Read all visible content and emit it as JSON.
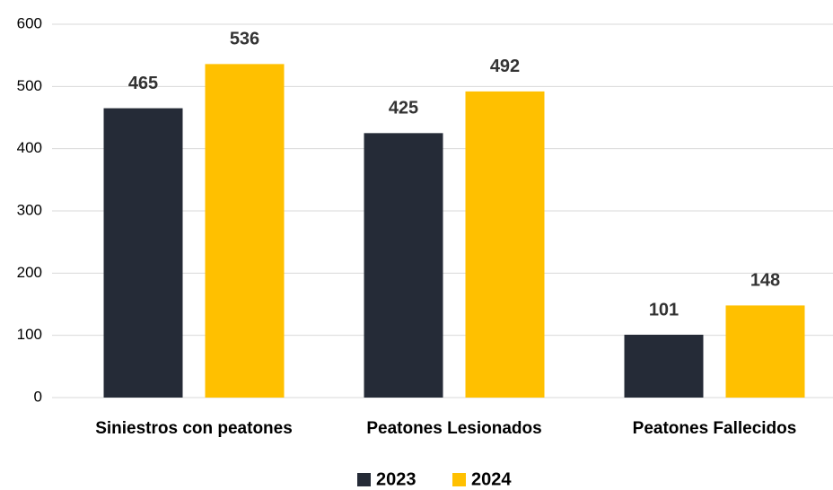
{
  "chart_data": {
    "type": "bar",
    "categories": [
      "Siniestros con peatones",
      "Peatones Lesionados",
      "Peatones Fallecidos"
    ],
    "series": [
      {
        "name": "2023",
        "color": "#252b37",
        "values": [
          465,
          425,
          101
        ]
      },
      {
        "name": "2024",
        "color": "#ffc000",
        "values": [
          536,
          492,
          148
        ]
      }
    ],
    "ylim": [
      0,
      600
    ],
    "yticks": [
      0,
      100,
      200,
      300,
      400,
      500,
      600
    ],
    "grid": true,
    "legend": "bottom"
  }
}
